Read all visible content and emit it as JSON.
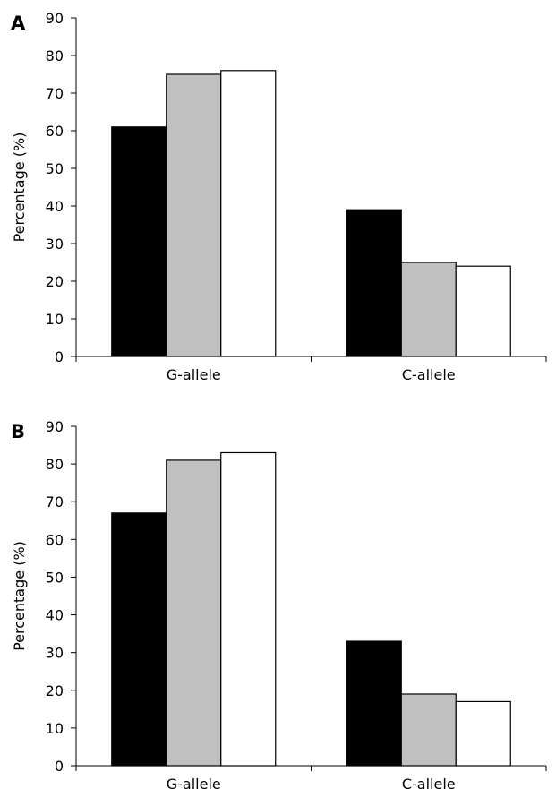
{
  "chart_data": [
    {
      "type": "bar",
      "panel_label": "A",
      "categories": [
        "G-allele",
        "C-allele"
      ],
      "series": [
        {
          "values": [
            61,
            39
          ],
          "color": "#000000"
        },
        {
          "values": [
            75,
            25
          ],
          "color": "#c0c0c0"
        },
        {
          "values": [
            76,
            24
          ],
          "color": "#ffffff"
        }
      ],
      "ylabel": "Percentage (%)",
      "xlabel": "",
      "title": "",
      "ylim": [
        0,
        90
      ],
      "yticks": [
        0,
        10,
        20,
        30,
        40,
        50,
        60,
        70,
        80,
        90
      ],
      "grid": false,
      "legend": "none"
    },
    {
      "type": "bar",
      "panel_label": "B",
      "categories": [
        "G-allele",
        "C-allele"
      ],
      "series": [
        {
          "values": [
            67,
            33
          ],
          "color": "#000000"
        },
        {
          "values": [
            81,
            19
          ],
          "color": "#c0c0c0"
        },
        {
          "values": [
            83,
            17
          ],
          "color": "#ffffff"
        }
      ],
      "ylabel": "Percentage (%)",
      "xlabel": "",
      "title": "",
      "ylim": [
        0,
        90
      ],
      "yticks": [
        0,
        10,
        20,
        30,
        40,
        50,
        60,
        70,
        80,
        90
      ],
      "grid": false,
      "legend": "none"
    }
  ]
}
